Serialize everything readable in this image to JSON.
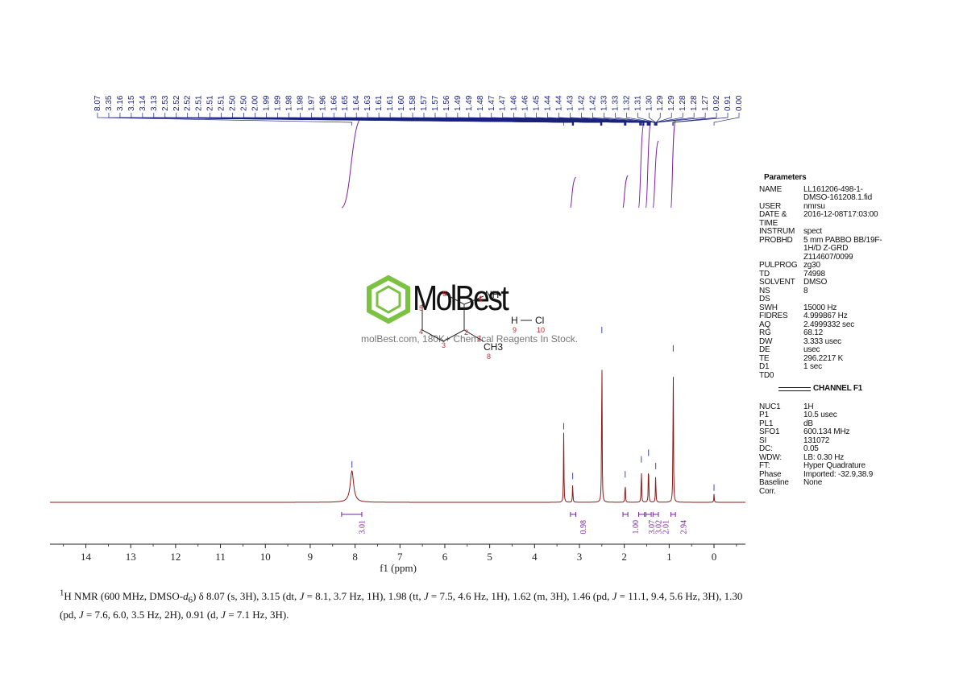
{
  "chart_data": {
    "type": "line",
    "title": "",
    "xlabel": "f1 (ppm)",
    "ylabel": "",
    "xlim": [
      14.8,
      -0.7
    ],
    "x_ticks": [
      "14",
      "13",
      "12",
      "11",
      "10",
      "9",
      "8",
      "7",
      "6",
      "5",
      "4",
      "3",
      "2",
      "1",
      "0"
    ],
    "grid": false,
    "peaks": [
      {
        "ppm": 8.07,
        "rel_height": 0.19
      },
      {
        "ppm": 3.35,
        "rel_height": 0.42
      },
      {
        "ppm": 3.15,
        "rel_height": 0.12
      },
      {
        "ppm": 2.5,
        "rel_height": 1.0
      },
      {
        "ppm": 1.98,
        "rel_height": 0.13
      },
      {
        "ppm": 1.62,
        "rel_height": 0.22
      },
      {
        "ppm": 1.46,
        "rel_height": 0.26
      },
      {
        "ppm": 1.3,
        "rel_height": 0.18
      },
      {
        "ppm": 0.91,
        "rel_height": 0.89
      },
      {
        "ppm": 0.0,
        "rel_height": 0.05
      }
    ],
    "peak_labels": [
      "8.07",
      "3.35",
      "3.16",
      "3.15",
      "3.14",
      "3.13",
      "2.53",
      "2.52",
      "2.52",
      "2.51",
      "2.51",
      "2.51",
      "2.50",
      "2.50",
      "2.00",
      "1.99",
      "1.99",
      "1.98",
      "1.98",
      "1.97",
      "1.96",
      "1.66",
      "1.65",
      "1.64",
      "1.63",
      "1.61",
      "1.61",
      "1.60",
      "1.58",
      "1.57",
      "1.57",
      "1.56",
      "1.49",
      "1.49",
      "1.48",
      "1.47",
      "1.47",
      "1.46",
      "1.46",
      "1.45",
      "1.44",
      "1.44",
      "1.43",
      "1.42",
      "1.42",
      "1.33",
      "1.33",
      "1.32",
      "1.31",
      "1.30",
      "1.29",
      "1.29",
      "1.28",
      "1.28",
      "1.27",
      "0.92",
      "0.91",
      "0.00"
    ],
    "integrals": [
      {
        "from": 8.3,
        "to": 7.85,
        "value": "3.01"
      },
      {
        "from": 3.2,
        "to": 3.08,
        "value": "0.98"
      },
      {
        "from": 2.03,
        "to": 1.92,
        "value": "1.00"
      },
      {
        "from": 1.68,
        "to": 1.55,
        "value": "3.07"
      },
      {
        "from": 1.52,
        "to": 1.4,
        "value": "3.02"
      },
      {
        "from": 1.36,
        "to": 1.24,
        "value": "2.01"
      },
      {
        "from": 0.96,
        "to": 0.86,
        "value": "2.94"
      }
    ]
  },
  "colors": {
    "spectrum": "#8b1a1a",
    "peak_labels": "#1a237e",
    "integrals": "#7b1fa2",
    "watermark_green": "#7cc242"
  },
  "parameters": {
    "title": "Parameters",
    "rows": [
      {
        "k": "NAME",
        "v": "LL161206-498-1-DMSO-161208.1.fid"
      },
      {
        "k": "USER",
        "v": "nmrsu"
      },
      {
        "k": "DATE & TIME",
        "v": "2016-12-08T17:03:00"
      },
      {
        "k": "INSTRUM",
        "v": "spect"
      },
      {
        "k": "PROBHD",
        "v": "5 mm PABBO BB/19F-1H/D Z-GRD Z114607/0099"
      },
      {
        "k": "PULPROG",
        "v": "zg30"
      },
      {
        "k": "TD",
        "v": "74998"
      },
      {
        "k": "SOLVENT",
        "v": "DMSO"
      },
      {
        "k": "NS",
        "v": "8"
      },
      {
        "k": "DS",
        "v": ""
      },
      {
        "k": "SWH",
        "v": "15000 Hz"
      },
      {
        "k": "FIDRES",
        "v": "4.999867 Hz"
      },
      {
        "k": "AQ",
        "v": "2.4999332 sec"
      },
      {
        "k": "RG",
        "v": "68.12"
      },
      {
        "k": "DW",
        "v": "3.333 usec"
      },
      {
        "k": "DE",
        "v": "usec"
      },
      {
        "k": "TE",
        "v": "296.2217 K"
      },
      {
        "k": "D1",
        "v": "1 sec"
      },
      {
        "k": "TD0",
        "v": ""
      }
    ],
    "channel_title": "CHANNEL F1",
    "channel_rows": [
      {
        "k": "NUC1",
        "v": "1H"
      },
      {
        "k": "P1",
        "v": "10.5 usec"
      },
      {
        "k": "PL1",
        "v": "dB"
      },
      {
        "k": "SFO1",
        "v": "600.134 MHz"
      },
      {
        "k": "SI",
        "v": "131072"
      },
      {
        "k": "DC:",
        "v": "0.05"
      },
      {
        "k": "WDW:",
        "v": "LB: 0.30 Hz"
      },
      {
        "k": "FT:",
        "v": "Hyper Quadrature"
      },
      {
        "k": "Phase",
        "v": "Imported: -32.9,38.9"
      },
      {
        "k": "Baseline Corr.",
        "v": "None"
      }
    ]
  },
  "watermark": {
    "brand": "MolBest",
    "url_text": "molBest.com, 180K+ Chemical Reagents In Stock."
  },
  "structure": {
    "labels": [
      "NH",
      "H",
      "Cl",
      "CH3"
    ],
    "numbers": [
      "1",
      "2",
      "3",
      "4",
      "5",
      "6",
      "7",
      "8",
      "9",
      "10"
    ]
  },
  "caption": {
    "text": "1H NMR (600 MHz, DMSO-d6) δ 8.07 (s, 3H), 3.15 (dt, J = 8.1, 3.7 Hz, 1H), 1.98 (tt, J = 7.5, 4.6 Hz, 1H), 1.62 (m, 3H), 1.46 (pd, J = 11.1, 9.4, 5.6 Hz, 3H), 1.30 (pd, J = 7.6, 6.0, 3.5 Hz, 2H), 0.91 (d, J = 7.1 Hz, 3H)."
  }
}
